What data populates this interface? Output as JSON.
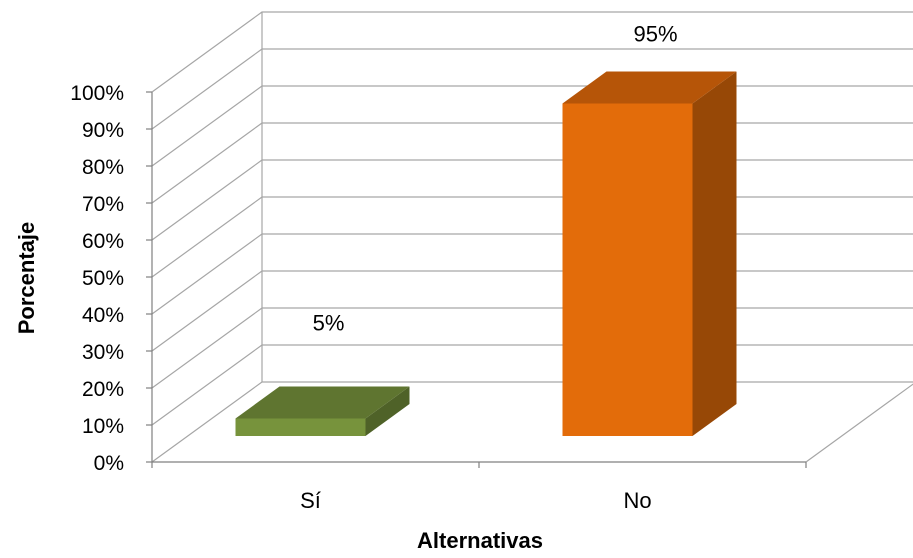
{
  "chart_data": {
    "type": "bar",
    "categories": [
      "Sí",
      "No"
    ],
    "values": [
      5,
      95
    ],
    "data_labels": [
      "5%",
      "95%"
    ],
    "xlabel": "Alternativas",
    "ylabel": "Porcentaje",
    "ylim": [
      0,
      100
    ],
    "y_tick_labels": [
      "0%",
      "10%",
      "20%",
      "30%",
      "40%",
      "50%",
      "60%",
      "70%",
      "80%",
      "90%",
      "100%"
    ],
    "grid": true,
    "legend": "none",
    "three_d": true,
    "colors": {
      "series": [
        {
          "front": "#77933c",
          "top": "#5f7530",
          "side": "#4f6228"
        },
        {
          "front": "#e36c0a",
          "top": "#b65508",
          "side": "#974806"
        }
      ],
      "grid": "#a6a6a6"
    }
  }
}
